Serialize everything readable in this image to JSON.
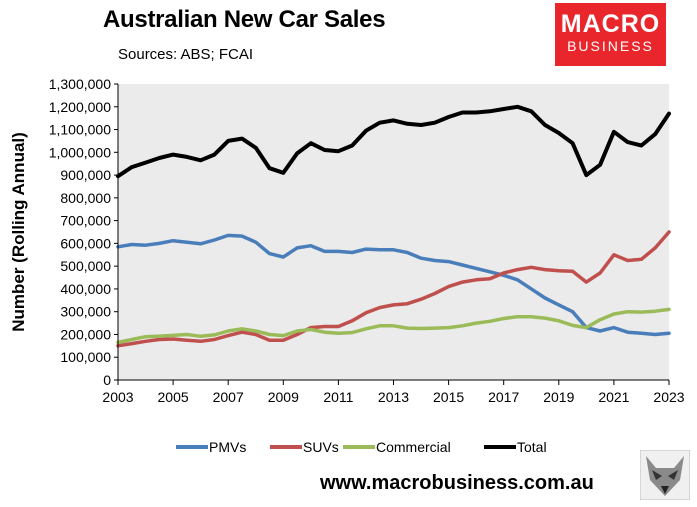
{
  "header": {
    "title": "Australian New Car Sales",
    "subtitle": "Sources: ABS; FCAI"
  },
  "logo": {
    "top": "MACRO",
    "bottom": "BUSINESS",
    "color": "#e8262b"
  },
  "footer": {
    "website": "www.macrobusiness.com.au"
  },
  "chart_data": {
    "type": "line",
    "title": "Australian New Car Sales",
    "xlabel": "",
    "ylabel": "Number (Rolling Annual)",
    "xlim": [
      2003,
      2023
    ],
    "ylim": [
      0,
      1300000
    ],
    "x_ticks": [
      2003,
      2005,
      2007,
      2009,
      2011,
      2013,
      2015,
      2017,
      2019,
      2021,
      2023
    ],
    "y_ticks": [
      0,
      100000,
      200000,
      300000,
      400000,
      500000,
      600000,
      700000,
      800000,
      900000,
      1000000,
      1100000,
      1200000,
      1300000
    ],
    "y_tick_labels": [
      "0",
      "100,000",
      "200,000",
      "300,000",
      "400,000",
      "500,000",
      "600,000",
      "700,000",
      "800,000",
      "900,000",
      "1,000,000",
      "1,100,000",
      "1,200,000",
      "1,300,000"
    ],
    "grid": false,
    "plot_background": "#ebebeb",
    "legend_position": "bottom",
    "series": [
      {
        "name": "PMVs",
        "color": "#4a7ebb",
        "x": [
          2003,
          2003.5,
          2004,
          2004.5,
          2005,
          2005.5,
          2006,
          2006.5,
          2007,
          2007.5,
          2008,
          2008.5,
          2009,
          2009.5,
          2010,
          2010.5,
          2011,
          2011.5,
          2012,
          2012.5,
          2013,
          2013.5,
          2014,
          2014.5,
          2015,
          2015.5,
          2016,
          2016.5,
          2017,
          2017.5,
          2018,
          2018.5,
          2019,
          2019.5,
          2020,
          2020.5,
          2021,
          2021.5,
          2022,
          2022.5,
          2023
        ],
        "y": [
          585000,
          595000,
          592000,
          600000,
          612000,
          605000,
          598000,
          615000,
          635000,
          632000,
          605000,
          555000,
          540000,
          580000,
          590000,
          565000,
          565000,
          560000,
          575000,
          572000,
          572000,
          560000,
          535000,
          525000,
          520000,
          505000,
          490000,
          475000,
          460000,
          440000,
          400000,
          360000,
          330000,
          300000,
          230000,
          215000,
          230000,
          210000,
          205000,
          200000,
          205000
        ]
      },
      {
        "name": "SUVs",
        "color": "#c0504d",
        "x": [
          2003,
          2003.5,
          2004,
          2004.5,
          2005,
          2005.5,
          2006,
          2006.5,
          2007,
          2007.5,
          2008,
          2008.5,
          2009,
          2009.5,
          2010,
          2010.5,
          2011,
          2011.5,
          2012,
          2012.5,
          2013,
          2013.5,
          2014,
          2014.5,
          2015,
          2015.5,
          2016,
          2016.5,
          2017,
          2017.5,
          2018,
          2018.5,
          2019,
          2019.5,
          2020,
          2020.5,
          2021,
          2021.5,
          2022,
          2022.5,
          2023
        ],
        "y": [
          150000,
          160000,
          170000,
          178000,
          180000,
          175000,
          170000,
          178000,
          195000,
          210000,
          200000,
          175000,
          175000,
          200000,
          230000,
          235000,
          235000,
          260000,
          295000,
          318000,
          330000,
          335000,
          355000,
          380000,
          410000,
          430000,
          440000,
          445000,
          470000,
          485000,
          495000,
          485000,
          480000,
          478000,
          430000,
          470000,
          550000,
          525000,
          530000,
          580000,
          650000
        ]
      },
      {
        "name": "Commercial",
        "color": "#9bbb59",
        "x": [
          2003,
          2003.5,
          2004,
          2004.5,
          2005,
          2005.5,
          2006,
          2006.5,
          2007,
          2007.5,
          2008,
          2008.5,
          2009,
          2009.5,
          2010,
          2010.5,
          2011,
          2011.5,
          2012,
          2012.5,
          2013,
          2013.5,
          2014,
          2014.5,
          2015,
          2015.5,
          2016,
          2016.5,
          2017,
          2017.5,
          2018,
          2018.5,
          2019,
          2019.5,
          2020,
          2020.5,
          2021,
          2021.5,
          2022,
          2022.5,
          2023
        ],
        "y": [
          165000,
          178000,
          190000,
          193000,
          196000,
          200000,
          192000,
          198000,
          215000,
          225000,
          215000,
          200000,
          195000,
          215000,
          222000,
          210000,
          205000,
          208000,
          225000,
          238000,
          238000,
          228000,
          226000,
          228000,
          230000,
          238000,
          250000,
          258000,
          270000,
          278000,
          278000,
          272000,
          260000,
          240000,
          230000,
          265000,
          290000,
          300000,
          298000,
          302000,
          310000
        ]
      },
      {
        "name": "Total",
        "color": "#000000",
        "x": [
          2003,
          2003.5,
          2004,
          2004.5,
          2005,
          2005.5,
          2006,
          2006.5,
          2007,
          2007.5,
          2008,
          2008.5,
          2009,
          2009.5,
          2010,
          2010.5,
          2011,
          2011.5,
          2012,
          2012.5,
          2013,
          2013.5,
          2014,
          2014.5,
          2015,
          2015.5,
          2016,
          2016.5,
          2017,
          2017.5,
          2018,
          2018.5,
          2019,
          2019.5,
          2020,
          2020.5,
          2021,
          2021.5,
          2022,
          2022.5,
          2023
        ],
        "y": [
          895000,
          935000,
          955000,
          975000,
          990000,
          980000,
          965000,
          990000,
          1050000,
          1060000,
          1020000,
          930000,
          910000,
          995000,
          1040000,
          1010000,
          1005000,
          1030000,
          1095000,
          1130000,
          1140000,
          1125000,
          1120000,
          1130000,
          1155000,
          1175000,
          1175000,
          1180000,
          1190000,
          1200000,
          1180000,
          1120000,
          1085000,
          1040000,
          900000,
          945000,
          1090000,
          1045000,
          1030000,
          1080000,
          1170000
        ]
      }
    ]
  }
}
